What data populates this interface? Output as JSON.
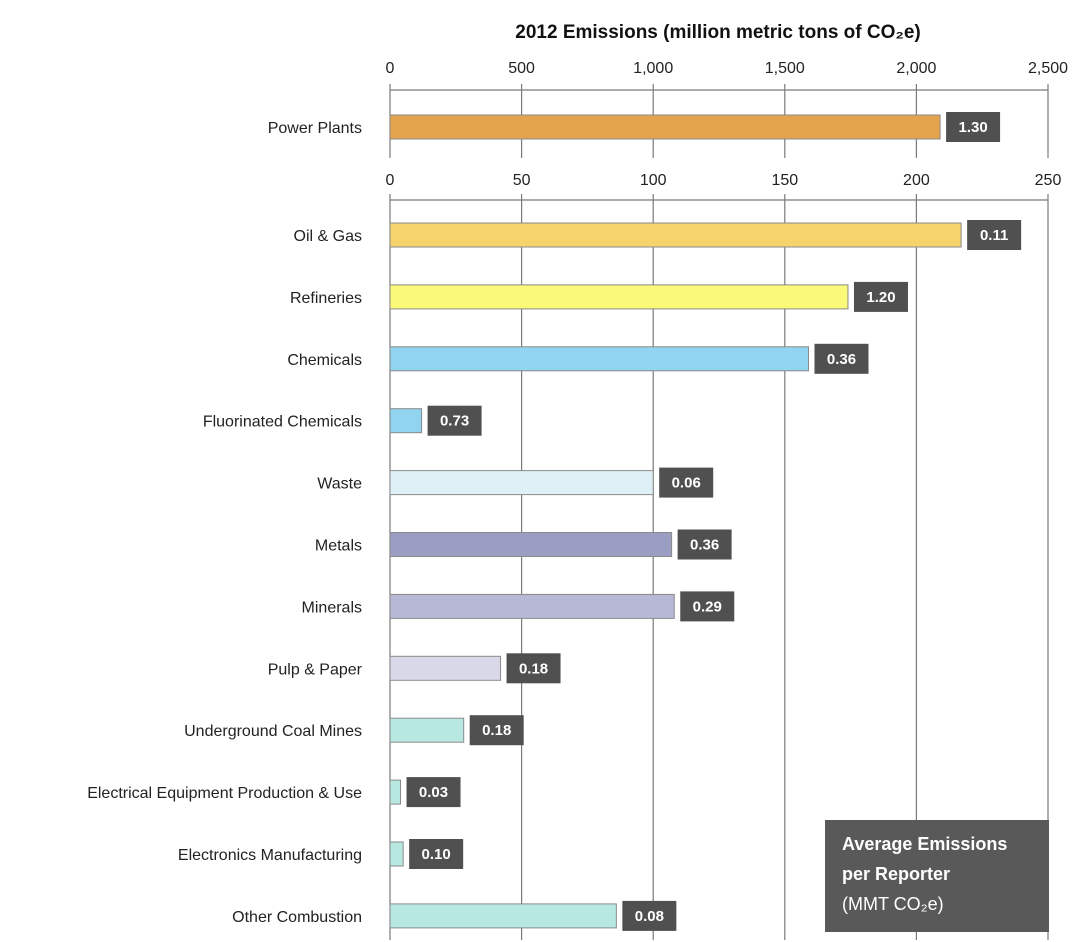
{
  "chart_data": [
    {
      "type": "bar",
      "orientation": "horizontal",
      "title": "2012 Emissions (million metric tons of CO₂e)",
      "xlim": [
        0,
        2500
      ],
      "ticks": [
        "0",
        "500",
        "1,000",
        "1,500",
        "2,000",
        "2,500"
      ],
      "tick_values": [
        0,
        500,
        1000,
        1500,
        2000,
        2500
      ],
      "grid": true,
      "categories": [
        "Power Plants"
      ],
      "values": [
        2090
      ],
      "data_labels": [
        "1.30"
      ],
      "colors": [
        "#e3a44d"
      ]
    },
    {
      "type": "bar",
      "orientation": "horizontal",
      "xlim": [
        0,
        250
      ],
      "ticks": [
        "0",
        "50",
        "100",
        "150",
        "200",
        "250"
      ],
      "tick_values": [
        0,
        50,
        100,
        150,
        200,
        250
      ],
      "grid": true,
      "categories": [
        "Oil & Gas",
        "Refineries",
        "Chemicals",
        "Fluorinated Chemicals",
        "Waste",
        "Metals",
        "Minerals",
        "Pulp & Paper",
        "Underground Coal Mines",
        "Electrical Equipment Production & Use",
        "Electronics Manufacturing",
        "Other Combustion"
      ],
      "values": [
        217,
        174,
        159,
        12,
        100,
        107,
        108,
        42,
        28,
        4,
        5,
        86
      ],
      "data_labels": [
        "0.11",
        "1.20",
        "0.36",
        "0.73",
        "0.06",
        "0.36",
        "0.29",
        "0.18",
        "0.18",
        "0.03",
        "0.10",
        "0.08"
      ],
      "colors": [
        "#f5d46e",
        "#fafa78",
        "#90d4f0",
        "#90d4f0",
        "#dff0f6",
        "#9a9ec2",
        "#b6b8d6",
        "#d9d8e8",
        "#b8e8e2",
        "#b8e8e2",
        "#b8e8e2",
        "#b8e8e2"
      ]
    }
  ],
  "legend": {
    "line1": "Average Emissions",
    "line2": "per Reporter",
    "line3": "(MMT CO₂e)"
  },
  "colors": {
    "grid": "#7a7a7a",
    "label_box": "#505050",
    "legend_box": "#595959",
    "bar_border": "#8a8a8a"
  }
}
